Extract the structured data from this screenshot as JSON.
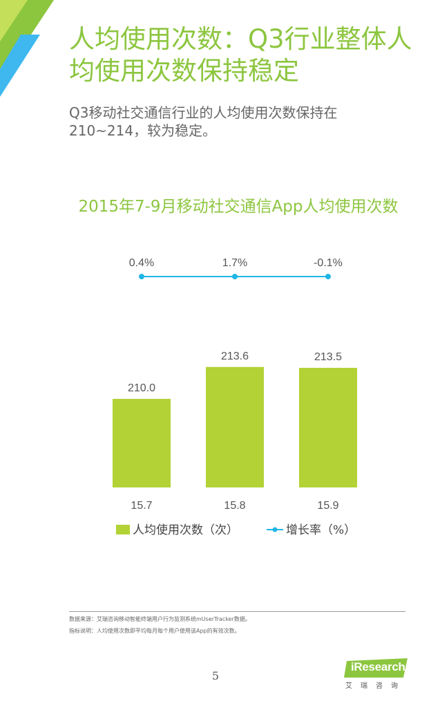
{
  "page": {
    "title": "人均使用次数：Q3行业整体人均使用次数保持稳定",
    "summary": "Q3移动社交通信行业的人均使用次数保持在210~214，较为稳定。",
    "chart_title": "2015年7-9月移动社交通信App人均使用次数",
    "page_number": "5",
    "source_note": "数据来源：艾瑞咨询移动智能终端用户行为监测系统mUserTracker数据。",
    "definition_note": "指标说明：人均使用次数即平均每月每个用户使用该App的有效次数。"
  },
  "logo": {
    "text": "iResearch",
    "sub": "艾瑞咨询"
  },
  "colors": {
    "accent": "#8cc63f",
    "bar": "#b2d235",
    "line": "#1fb6e5",
    "corner_blue": "#3fb8f0"
  },
  "chart_data": {
    "type": "bar",
    "categories": [
      "15.7",
      "15.8",
      "15.9"
    ],
    "series": [
      {
        "name": "人均使用次数（次）",
        "type": "bar",
        "values": [
          210.0,
          213.6,
          213.5
        ]
      },
      {
        "name": "增长率（%）",
        "type": "line",
        "values": [
          0.4,
          1.7,
          -0.1
        ]
      }
    ],
    "bar_labels": [
      "210.0",
      "213.6",
      "213.5"
    ],
    "line_labels": [
      "0.4%",
      "1.7%",
      "-0.1%"
    ],
    "ylim": [
      200,
      216
    ],
    "grid": false,
    "legend": "bottom",
    "title": "2015年7-9月移动社交通信App人均使用次数"
  }
}
